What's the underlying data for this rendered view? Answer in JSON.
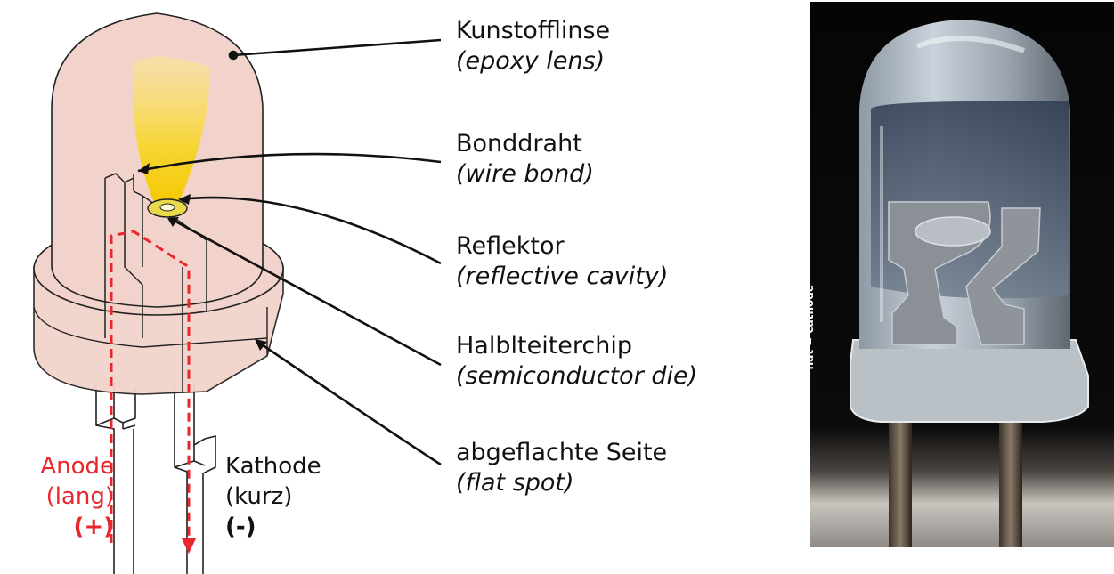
{
  "labels": [
    {
      "de": "Kunstofflinse",
      "en": "(epoxy lens)"
    },
    {
      "de": "Bonddraht",
      "en": "(wire bond)"
    },
    {
      "de": "Reflektor",
      "en": "(reflective cavity)"
    },
    {
      "de": "Halblteiterchip",
      "en": "(semiconductor die)"
    },
    {
      "de": "abgeflachte Seite",
      "en": "(flat spot)"
    }
  ],
  "anode": {
    "line1": "Anode",
    "line2": "(lang)",
    "line3": "(+)"
  },
  "cathode": {
    "line1": "Kathode",
    "line2": "(kurz)",
    "line3": "(-)"
  },
  "photo": {
    "caption": "flat = cathode"
  },
  "colors": {
    "lens": "#f2d3cb",
    "glow": "#f7dc3a",
    "anode": "#e8262b",
    "outline": "#222222"
  }
}
